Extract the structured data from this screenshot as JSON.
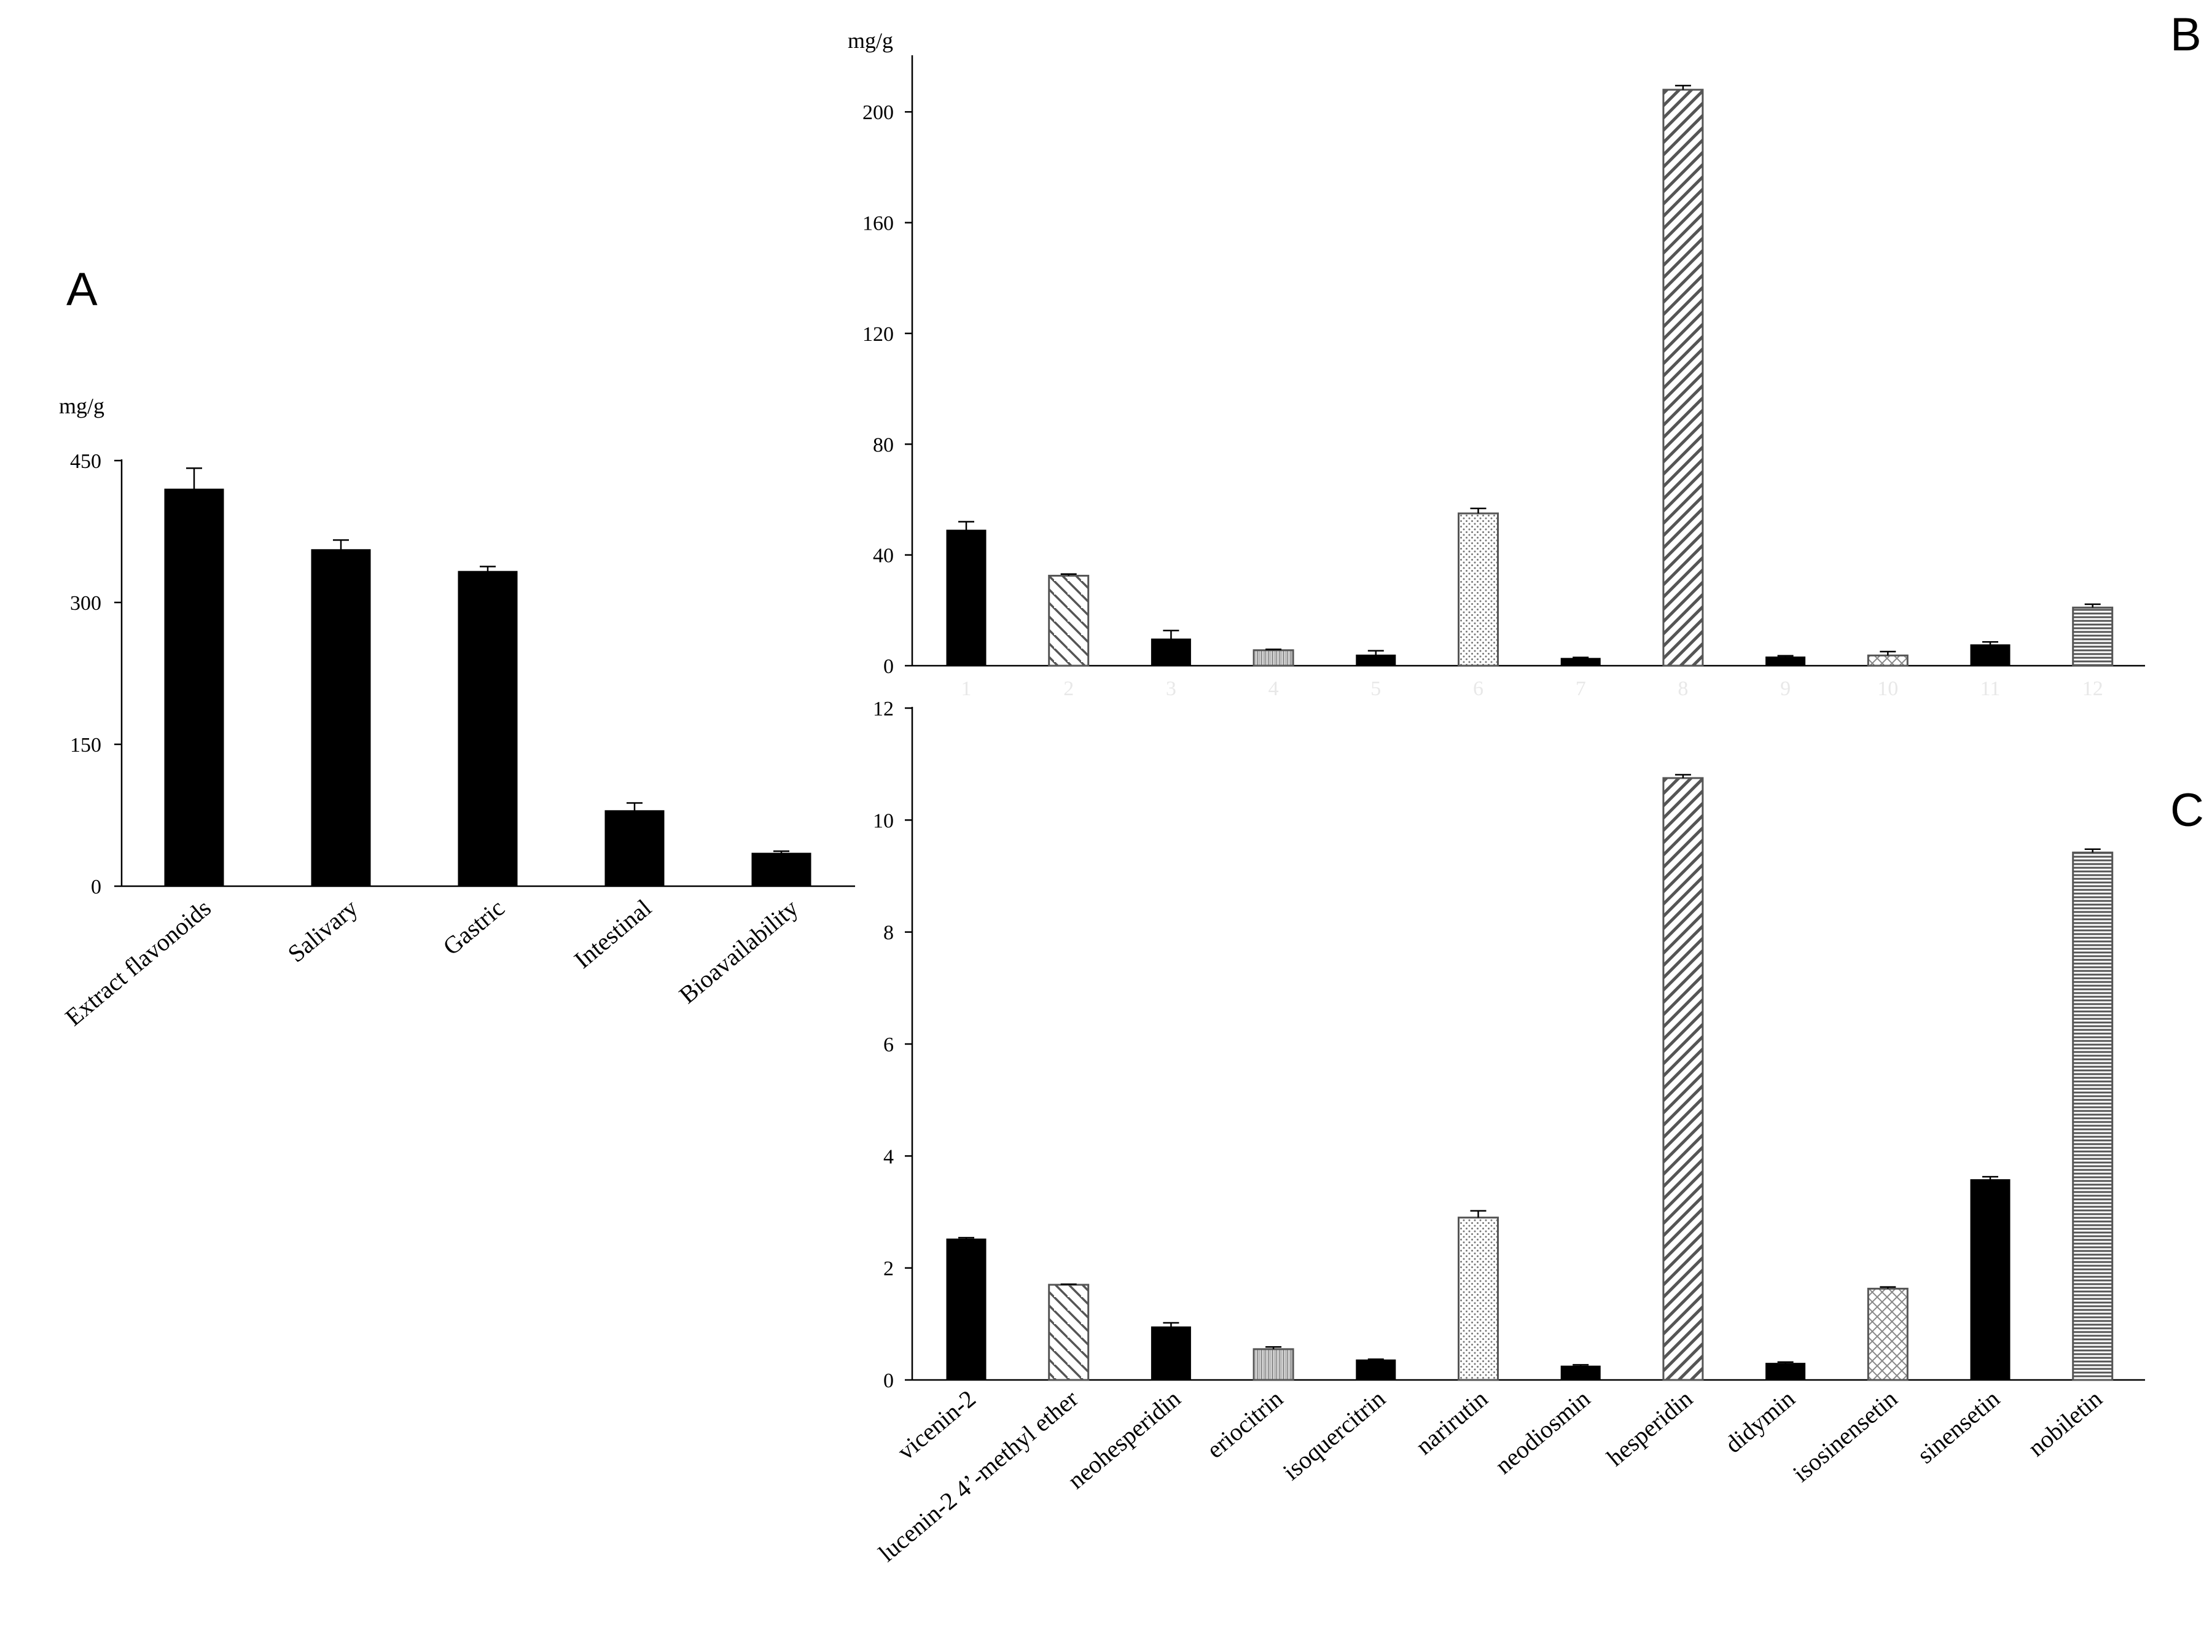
{
  "chart_data": [
    {
      "panel": "A",
      "type": "bar",
      "ylabel": "mg/g",
      "ylim": [
        0,
        450
      ],
      "yticks": [
        0,
        150,
        300,
        450
      ],
      "categories": [
        "Extract flavonoids",
        "Salivary",
        "Gastric",
        "Intestinal",
        "Bioavailability"
      ],
      "series": [
        {
          "values": [
            420,
            356,
            333,
            80,
            35
          ],
          "errors": [
            22,
            10,
            5,
            8,
            2
          ],
          "fills": [
            "solid",
            "solid",
            "solid",
            "solid",
            "solid"
          ]
        }
      ]
    },
    {
      "panel": "B",
      "type": "bar",
      "ylabel": "mg/g",
      "ylim": [
        0,
        220
      ],
      "yticks": [
        0,
        40,
        80,
        120,
        160,
        200
      ],
      "categories": [
        "1",
        "2",
        "3",
        "4",
        "5",
        "6",
        "7",
        "8",
        "9",
        "10",
        "11",
        "12"
      ],
      "series": [
        {
          "values": [
            49,
            32.5,
            9.7,
            5.6,
            3.9,
            55,
            2.7,
            208,
            3.2,
            3.7,
            7.6,
            21
          ],
          "errors": [
            3,
            0.6,
            3,
            0.3,
            1.5,
            1.8,
            0.3,
            1.5,
            0.4,
            1.4,
            1,
            1.2
          ],
          "fills": [
            "solid",
            "diag-back",
            "solid",
            "vlines",
            "solid",
            "dots",
            "solid",
            "diag-fwd",
            "solid",
            "cross",
            "solid",
            "hlines"
          ]
        }
      ]
    },
    {
      "panel": "C",
      "type": "bar",
      "ylabel": "",
      "ylim": [
        0,
        12
      ],
      "yticks": [
        0,
        2,
        4,
        6,
        8,
        10,
        12
      ],
      "categories": [
        "vicenin-2",
        "lucenin-2 4’-methyl ether",
        "neohesperidin",
        "eriocitrin",
        "isoquercitrin",
        "narirutin",
        "neodiosmin",
        "hesperidin",
        "didymin",
        "isosinensetin",
        "sinensetin",
        "nobiletin"
      ],
      "series": [
        {
          "values": [
            2.52,
            1.7,
            0.95,
            0.55,
            0.36,
            2.9,
            0.25,
            10.75,
            0.3,
            1.63,
            3.58,
            9.42
          ],
          "errors": [
            0.02,
            0.01,
            0.07,
            0.04,
            0.01,
            0.12,
            0.02,
            0.06,
            0.02,
            0.03,
            0.05,
            0.06
          ],
          "fills": [
            "solid",
            "diag-back",
            "solid",
            "vlines",
            "solid",
            "dots",
            "solid",
            "diag-fwd",
            "solid",
            "cross",
            "solid",
            "hlines"
          ]
        }
      ]
    }
  ],
  "panel_labels": {
    "a": "A",
    "b": "B",
    "c": "C"
  }
}
